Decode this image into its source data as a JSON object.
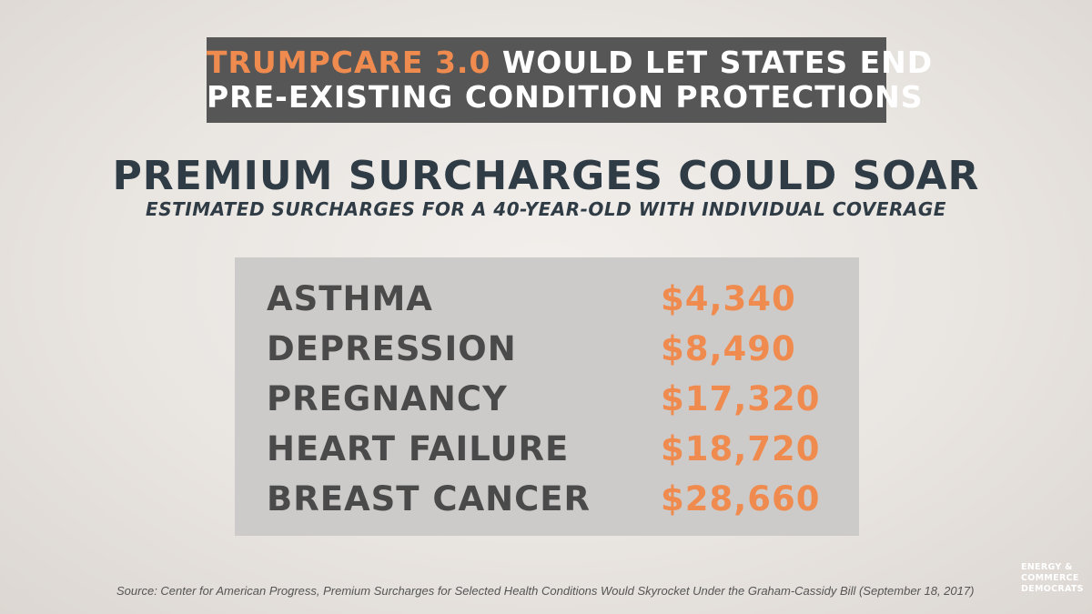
{
  "banner": {
    "accent": "TRUMPCARE 3.0",
    "line1_rest": " WOULD LET STATES END",
    "line2": "PRE-EXISTING CONDITION PROTECTIONS"
  },
  "headline": "PREMIUM SURCHARGES COULD SOAR",
  "subheadline": "ESTIMATED SURCHARGES FOR A 40-YEAR-OLD WITH INDIVIDUAL COVERAGE",
  "conditions": [
    {
      "name": "ASTHMA",
      "amount": "$4,340"
    },
    {
      "name": "DEPRESSION",
      "amount": "$8,490"
    },
    {
      "name": "PREGNANCY",
      "amount": "$17,320"
    },
    {
      "name": "HEART FAILURE",
      "amount": "$18,720"
    },
    {
      "name": "BREAST CANCER",
      "amount": "$28,660"
    }
  ],
  "source": "Source: Center for American Progress, Premium Surcharges for Selected Health Conditions Would Skyrocket Under the Graham-Cassidy Bill (September 18, 2017)",
  "logo": {
    "line1": "ENERGY &",
    "line2": "COMMERCE",
    "line3": "DEMOCRATS"
  },
  "colors": {
    "accent": "#f08b4f",
    "banner_bg": "#565656",
    "headline": "#2f3b45",
    "panel_bg": "#cdcbc9",
    "condition_text": "#4a4a4a"
  }
}
